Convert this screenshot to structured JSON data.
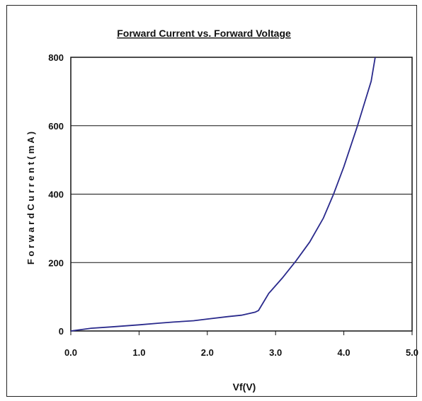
{
  "chart_data": {
    "type": "line",
    "title": "Forward Current vs. Forward Voltage",
    "xlabel": "Vf(V)",
    "ylabel": "F o r w a r d   C u r r e n t ( m A )",
    "xlim": [
      0,
      5
    ],
    "ylim": [
      0,
      800
    ],
    "x_ticks": [
      "0.0",
      "1.0",
      "2.0",
      "3.0",
      "4.0",
      "5.0"
    ],
    "y_ticks": [
      "0",
      "200",
      "400",
      "600",
      "800"
    ],
    "grid": "horizontal",
    "line_color": "#2a2a8c",
    "series": [
      {
        "x": [
          0.0,
          0.3,
          0.6,
          1.0,
          1.3,
          1.5,
          1.8,
          2.0,
          2.3,
          2.5,
          2.7,
          2.75,
          2.9,
          3.1,
          3.3,
          3.5,
          3.7,
          3.85,
          4.0,
          4.2,
          4.4,
          4.46
        ],
        "y": [
          0,
          8,
          12,
          18,
          23,
          26,
          30,
          35,
          42,
          46,
          55,
          60,
          110,
          155,
          205,
          260,
          330,
          400,
          480,
          600,
          730,
          800
        ]
      }
    ]
  }
}
